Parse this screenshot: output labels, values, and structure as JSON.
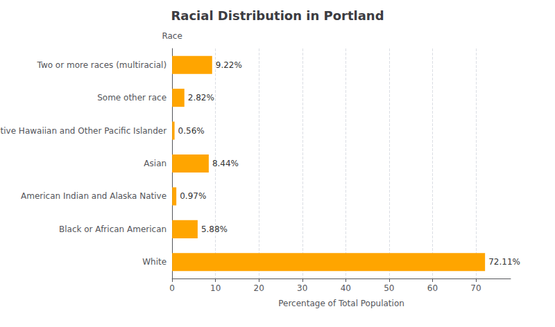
{
  "chart_data": {
    "type": "bar",
    "orientation": "horizontal",
    "title": "Racial Distribution in Portland",
    "xlabel": "Percentage of Total Population",
    "ylabel": "Race",
    "categories": [
      "White",
      "Black or African American",
      "American Indian and Alaska Native",
      "Asian",
      "Native Hawaiian and Other Pacific Islander",
      "Some other race",
      "Two or more races (multiracial)"
    ],
    "values": [
      72.11,
      5.88,
      0.97,
      8.44,
      0.56,
      2.82,
      9.22
    ],
    "value_labels": [
      "72.11%",
      "5.88%",
      "0.97%",
      "8.44%",
      "0.56%",
      "2.82%",
      "9.22%"
    ],
    "data_labels": true,
    "color": "#FFA500",
    "xlim": [
      0,
      78
    ],
    "xticks": [
      0,
      10,
      20,
      30,
      40,
      50,
      60,
      70
    ],
    "grid": true
  }
}
